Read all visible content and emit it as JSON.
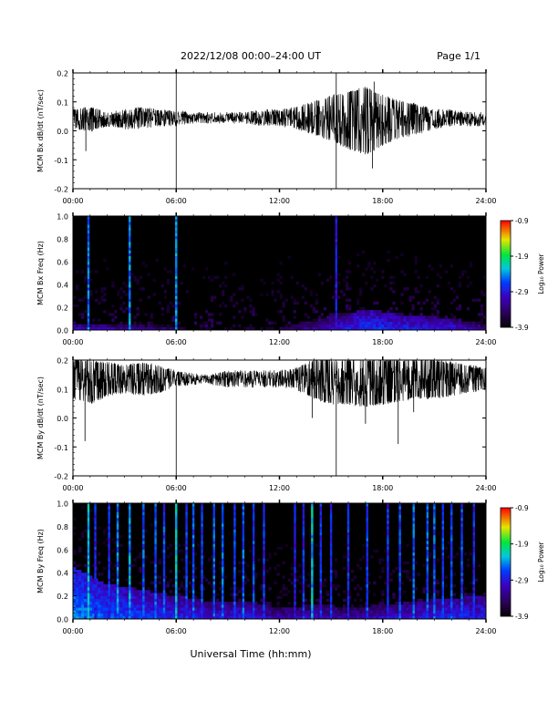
{
  "header": {
    "title": "2022/12/08  00:00–24:00 UT",
    "page": "Page 1/1"
  },
  "xaxis": {
    "label": "Universal Time (hh:mm)",
    "ticks": [
      "00:00",
      "06:00",
      "12:00",
      "18:00",
      "24:00"
    ],
    "range_hours": [
      0,
      24
    ]
  },
  "colorbar": {
    "label": "Log₁₀ Power",
    "ticks": [
      "-0.9",
      "-1.9",
      "-2.9",
      "-3.9"
    ],
    "range": [
      -3.9,
      -0.9
    ]
  },
  "chart_data": [
    {
      "type": "line",
      "ylabel": "MCM Bx dB/dt (nT/sec)",
      "ylim": [
        -0.2,
        0.2
      ],
      "yticks": [
        "0.2",
        "0.1",
        "0.0",
        "-0.1",
        "-0.2"
      ],
      "baseline": 0.04,
      "envelope": [
        {
          "t": 0,
          "lo": 0.01,
          "hi": 0.07
        },
        {
          "t": 1,
          "lo": 0.0,
          "hi": 0.08
        },
        {
          "t": 2,
          "lo": 0.02,
          "hi": 0.06
        },
        {
          "t": 3,
          "lo": 0.01,
          "hi": 0.07
        },
        {
          "t": 4,
          "lo": 0.01,
          "hi": 0.08
        },
        {
          "t": 5,
          "lo": 0.02,
          "hi": 0.07
        },
        {
          "t": 6,
          "lo": 0.02,
          "hi": 0.07
        },
        {
          "t": 7,
          "lo": 0.03,
          "hi": 0.06
        },
        {
          "t": 8,
          "lo": 0.03,
          "hi": 0.06
        },
        {
          "t": 9,
          "lo": 0.03,
          "hi": 0.06
        },
        {
          "t": 10,
          "lo": 0.03,
          "hi": 0.06
        },
        {
          "t": 11,
          "lo": 0.02,
          "hi": 0.07
        },
        {
          "t": 12,
          "lo": 0.02,
          "hi": 0.07
        },
        {
          "t": 13,
          "lo": 0.01,
          "hi": 0.08
        },
        {
          "t": 14,
          "lo": -0.01,
          "hi": 0.1
        },
        {
          "t": 15,
          "lo": -0.03,
          "hi": 0.12
        },
        {
          "t": 16,
          "lo": -0.06,
          "hi": 0.13
        },
        {
          "t": 17,
          "lo": -0.08,
          "hi": 0.15
        },
        {
          "t": 18,
          "lo": -0.05,
          "hi": 0.12
        },
        {
          "t": 19,
          "lo": -0.02,
          "hi": 0.1
        },
        {
          "t": 20,
          "lo": -0.01,
          "hi": 0.09
        },
        {
          "t": 21,
          "lo": 0.01,
          "hi": 0.07
        },
        {
          "t": 22,
          "lo": 0.02,
          "hi": 0.07
        },
        {
          "t": 23,
          "lo": 0.02,
          "hi": 0.06
        },
        {
          "t": 24,
          "lo": 0.02,
          "hi": 0.06
        }
      ],
      "spikes": [
        {
          "t": 0.75,
          "v": -0.07
        },
        {
          "t": 6.0,
          "v": -0.2
        },
        {
          "t": 6.0,
          "v": 0.2
        },
        {
          "t": 15.3,
          "v": -0.2
        },
        {
          "t": 15.3,
          "v": 0.2
        },
        {
          "t": 17.4,
          "v": -0.13
        },
        {
          "t": 17.5,
          "v": 0.17
        }
      ]
    },
    {
      "type": "heatmap",
      "ylabel": "MCM Bx Freq (Hz)",
      "ylim": [
        0,
        1.0
      ],
      "yticks": [
        "1.0",
        "0.8",
        "0.6",
        "0.4",
        "0.2",
        "0.0"
      ],
      "background_power": -3.9,
      "low_freq_activity": [
        {
          "t": 0,
          "f": 0.06,
          "p": -3.0
        },
        {
          "t": 4,
          "f": 0.05,
          "p": -3.2
        },
        {
          "t": 8,
          "f": 0.03,
          "p": -3.6
        },
        {
          "t": 12,
          "f": 0.04,
          "p": -3.5
        },
        {
          "t": 15,
          "f": 0.12,
          "p": -3.0
        },
        {
          "t": 17,
          "f": 0.18,
          "p": -2.7
        },
        {
          "t": 19,
          "f": 0.14,
          "p": -2.8
        },
        {
          "t": 22,
          "f": 0.1,
          "p": -2.9
        },
        {
          "t": 24,
          "f": 0.06,
          "p": -3.2
        }
      ],
      "bright_columns": [
        {
          "t": 0.9,
          "p": -2.5
        },
        {
          "t": 3.3,
          "p": -2.5
        },
        {
          "t": 6.0,
          "p": -2.4
        },
        {
          "t": 15.3,
          "p": -2.9
        }
      ]
    },
    {
      "type": "line",
      "ylabel": "MCM By dB/dt (nT/sec)",
      "ylim": [
        -0.2,
        0.2
      ],
      "yticks": [
        "0.2",
        "0.1",
        "0.0",
        "-0.1",
        "-0.2"
      ],
      "baseline": 0.13,
      "envelope": [
        {
          "t": 0,
          "lo": 0.07,
          "hi": 0.2
        },
        {
          "t": 1,
          "lo": 0.05,
          "hi": 0.2
        },
        {
          "t": 2,
          "lo": 0.08,
          "hi": 0.19
        },
        {
          "t": 3,
          "lo": 0.09,
          "hi": 0.18
        },
        {
          "t": 4,
          "lo": 0.08,
          "hi": 0.19
        },
        {
          "t": 5,
          "lo": 0.09,
          "hi": 0.18
        },
        {
          "t": 6,
          "lo": 0.11,
          "hi": 0.16
        },
        {
          "t": 7,
          "lo": 0.12,
          "hi": 0.15
        },
        {
          "t": 8,
          "lo": 0.12,
          "hi": 0.15
        },
        {
          "t": 9,
          "lo": 0.11,
          "hi": 0.16
        },
        {
          "t": 10,
          "lo": 0.11,
          "hi": 0.16
        },
        {
          "t": 11,
          "lo": 0.11,
          "hi": 0.16
        },
        {
          "t": 12,
          "lo": 0.11,
          "hi": 0.16
        },
        {
          "t": 13,
          "lo": 0.1,
          "hi": 0.17
        },
        {
          "t": 14,
          "lo": 0.07,
          "hi": 0.2
        },
        {
          "t": 15,
          "lo": 0.05,
          "hi": 0.2
        },
        {
          "t": 16,
          "lo": 0.05,
          "hi": 0.2
        },
        {
          "t": 17,
          "lo": 0.04,
          "hi": 0.2
        },
        {
          "t": 18,
          "lo": 0.05,
          "hi": 0.2
        },
        {
          "t": 19,
          "lo": 0.06,
          "hi": 0.2
        },
        {
          "t": 20,
          "lo": 0.07,
          "hi": 0.2
        },
        {
          "t": 21,
          "lo": 0.07,
          "hi": 0.2
        },
        {
          "t": 22,
          "lo": 0.08,
          "hi": 0.19
        },
        {
          "t": 23,
          "lo": 0.09,
          "hi": 0.18
        },
        {
          "t": 24,
          "lo": 0.1,
          "hi": 0.17
        }
      ],
      "spikes": [
        {
          "t": 0.7,
          "v": -0.08
        },
        {
          "t": 6.0,
          "v": -0.2
        },
        {
          "t": 15.3,
          "v": -0.2
        },
        {
          "t": 13.9,
          "v": 0.0
        },
        {
          "t": 17.0,
          "v": -0.02
        },
        {
          "t": 18.9,
          "v": -0.09
        },
        {
          "t": 19.8,
          "v": 0.02
        }
      ]
    },
    {
      "type": "heatmap",
      "ylabel": "MCM By Freq (Hz)",
      "ylim": [
        0,
        1.0
      ],
      "yticks": [
        "1.0",
        "0.8",
        "0.6",
        "0.4",
        "0.2",
        "0.0"
      ],
      "background_power": -3.9,
      "low_freq_activity": [
        {
          "t": 0,
          "f": 0.45,
          "p": -2.4
        },
        {
          "t": 2,
          "f": 0.3,
          "p": -2.6
        },
        {
          "t": 4,
          "f": 0.25,
          "p": -2.7
        },
        {
          "t": 6,
          "f": 0.2,
          "p": -2.8
        },
        {
          "t": 8,
          "f": 0.15,
          "p": -2.9
        },
        {
          "t": 10,
          "f": 0.15,
          "p": -2.9
        },
        {
          "t": 12,
          "f": 0.1,
          "p": -3.1
        },
        {
          "t": 14,
          "f": 0.12,
          "p": -3.0
        },
        {
          "t": 16,
          "f": 0.1,
          "p": -3.1
        },
        {
          "t": 18,
          "f": 0.12,
          "p": -3.0
        },
        {
          "t": 20,
          "f": 0.15,
          "p": -2.9
        },
        {
          "t": 22,
          "f": 0.18,
          "p": -2.8
        },
        {
          "t": 24,
          "f": 0.2,
          "p": -2.8
        }
      ],
      "bright_columns": [
        {
          "t": 0.9,
          "p": -2.3
        },
        {
          "t": 1.3,
          "p": -2.8
        },
        {
          "t": 2.1,
          "p": -2.8
        },
        {
          "t": 2.6,
          "p": -2.5
        },
        {
          "t": 3.3,
          "p": -2.4
        },
        {
          "t": 4.1,
          "p": -2.6
        },
        {
          "t": 4.8,
          "p": -2.6
        },
        {
          "t": 5.3,
          "p": -2.7
        },
        {
          "t": 6.0,
          "p": -2.3
        },
        {
          "t": 6.6,
          "p": -2.7
        },
        {
          "t": 7.0,
          "p": -2.6
        },
        {
          "t": 7.5,
          "p": -2.7
        },
        {
          "t": 8.2,
          "p": -2.6
        },
        {
          "t": 8.7,
          "p": -2.6
        },
        {
          "t": 9.4,
          "p": -2.7
        },
        {
          "t": 9.9,
          "p": -2.6
        },
        {
          "t": 10.5,
          "p": -2.7
        },
        {
          "t": 11.1,
          "p": -2.8
        },
        {
          "t": 12.9,
          "p": -2.9
        },
        {
          "t": 13.4,
          "p": -2.8
        },
        {
          "t": 13.9,
          "p": -2.3
        },
        {
          "t": 14.4,
          "p": -2.8
        },
        {
          "t": 15.0,
          "p": -2.8
        },
        {
          "t": 16.0,
          "p": -2.8
        },
        {
          "t": 17.1,
          "p": -2.7
        },
        {
          "t": 18.3,
          "p": -2.8
        },
        {
          "t": 19.0,
          "p": -2.7
        },
        {
          "t": 19.8,
          "p": -2.6
        },
        {
          "t": 20.6,
          "p": -2.6
        },
        {
          "t": 21.0,
          "p": -2.6
        },
        {
          "t": 21.5,
          "p": -2.7
        },
        {
          "t": 22.0,
          "p": -2.7
        },
        {
          "t": 22.6,
          "p": -2.7
        },
        {
          "t": 23.3,
          "p": -2.8
        }
      ]
    }
  ]
}
